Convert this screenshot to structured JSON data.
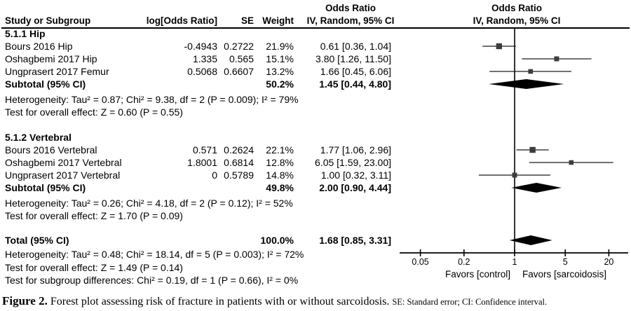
{
  "headers": {
    "study": "Study or Subgroup",
    "log_or": "log[Odds Ratio]",
    "se": "SE",
    "weight": "Weight",
    "or_col": {
      "line1": "Odds Ratio",
      "line2": "IV, Random, 95% CI"
    },
    "plot_col": {
      "line1": "Odds Ratio",
      "line2": "IV, Random, 95% CI"
    }
  },
  "caption": {
    "label": "Figure 2.",
    "text": "Forest plot assessing risk of fracture in patients with or without sarcoidosis.",
    "note": "SE: Standard error; CI: Confidence interval."
  },
  "chart_data": {
    "type": "forest",
    "scale": "log10",
    "effect_measure": "Odds Ratio",
    "method": "IV, Random, 95% CI",
    "axis": {
      "tick_values": [
        0.05,
        0.2,
        1,
        5,
        20
      ],
      "tick_labels": [
        "0.05",
        "0.2",
        "1",
        "5",
        "20"
      ],
      "null_line": 1,
      "favors_left": "Favors [control]",
      "favors_right": "Favors [sarcoidosis]"
    },
    "groups": [
      {
        "name": "5.1.1 Hip",
        "studies": [
          {
            "name": "Bours 2016 Hip",
            "log_or": "-0.4943",
            "se": "0.2722",
            "weight": "21.9%",
            "weight_pct": 21.9,
            "or": 0.61,
            "ci_low": 0.36,
            "ci_high": 1.04,
            "ci_text": "0.61 [0.36, 1.04]"
          },
          {
            "name": "Oshagbemi 2017 Hip",
            "log_or": "1.335",
            "se": "0.565",
            "weight": "15.1%",
            "weight_pct": 15.1,
            "or": 3.8,
            "ci_low": 1.26,
            "ci_high": 11.5,
            "ci_text": "3.80 [1.26, 11.50]"
          },
          {
            "name": "Ungprasert 2017 Femur",
            "log_or": "0.5068",
            "se": "0.6607",
            "weight": "13.2%",
            "weight_pct": 13.2,
            "or": 1.66,
            "ci_low": 0.45,
            "ci_high": 6.06,
            "ci_text": "1.66 [0.45, 6.06]"
          }
        ],
        "subtotal": {
          "label": "Subtotal (95% CI)",
          "weight": "50.2%",
          "or": 1.45,
          "ci_low": 0.44,
          "ci_high": 4.8,
          "ci_text": "1.45 [0.44, 4.80]"
        },
        "heterogeneity": "Heterogeneity: Tau² = 0.87; Chi² = 9.38, df = 2 (P = 0.009); I² = 79%",
        "overall_effect": "Test for overall effect: Z = 0.60 (P = 0.55)"
      },
      {
        "name": "5.1.2 Vertebral",
        "studies": [
          {
            "name": "Bours 2016 Vertebral",
            "log_or": "0.571",
            "se": "0.2624",
            "weight": "22.1%",
            "weight_pct": 22.1,
            "or": 1.77,
            "ci_low": 1.06,
            "ci_high": 2.96,
            "ci_text": "1.77 [1.06, 2.96]"
          },
          {
            "name": "Oshagbemi 2017 Vertebral",
            "log_or": "1.8001",
            "se": "0.6814",
            "weight": "12.8%",
            "weight_pct": 12.8,
            "or": 6.05,
            "ci_low": 1.59,
            "ci_high": 23.0,
            "ci_text": "6.05 [1.59, 23.00]"
          },
          {
            "name": "Ungprasert 2017 Vertebral",
            "log_or": "0",
            "se": "0.5789",
            "weight": "14.8%",
            "weight_pct": 14.8,
            "or": 1.0,
            "ci_low": 0.32,
            "ci_high": 3.11,
            "ci_text": "1.00 [0.32, 3.11]"
          }
        ],
        "subtotal": {
          "label": "Subtotal (95% CI)",
          "weight": "49.8%",
          "or": 2.0,
          "ci_low": 0.9,
          "ci_high": 4.44,
          "ci_text": "2.00 [0.90, 4.44]"
        },
        "heterogeneity": "Heterogeneity: Tau² = 0.26; Chi² = 4.18, df = 2 (P = 0.12); I² = 52%",
        "overall_effect": "Test for overall effect: Z = 1.70 (P = 0.09)"
      }
    ],
    "total": {
      "label": "Total (95% CI)",
      "weight": "100.0%",
      "or": 1.68,
      "ci_low": 0.85,
      "ci_high": 3.31,
      "ci_text": "1.68 [0.85, 3.31]",
      "heterogeneity": "Heterogeneity: Tau² = 0.48; Chi² = 18.14, df = 5 (P = 0.003); I² = 72%",
      "overall_effect": "Test for overall effect: Z = 1.49 (P = 0.14)",
      "subgroup_differences": "Test for subgroup differences: Chi² = 0.19, df = 1 (P = 0.66), I² = 0%"
    },
    "colors": {
      "square": "#3d3d3d",
      "diamond": "#000000",
      "line": "#1a1a1a"
    }
  }
}
